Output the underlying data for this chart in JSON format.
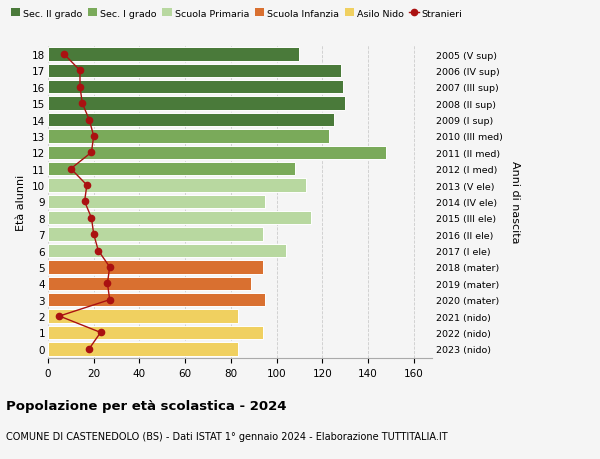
{
  "ages": [
    18,
    17,
    16,
    15,
    14,
    13,
    12,
    11,
    10,
    9,
    8,
    7,
    6,
    5,
    4,
    3,
    2,
    1,
    0
  ],
  "bar_values": [
    110,
    128,
    129,
    130,
    125,
    123,
    148,
    108,
    113,
    95,
    115,
    94,
    104,
    94,
    89,
    95,
    83,
    94,
    83
  ],
  "stranieri": [
    7,
    14,
    14,
    15,
    18,
    20,
    19,
    10,
    17,
    16,
    19,
    20,
    22,
    27,
    26,
    27,
    5,
    23,
    18
  ],
  "right_labels": [
    "2005 (V sup)",
    "2006 (IV sup)",
    "2007 (III sup)",
    "2008 (II sup)",
    "2009 (I sup)",
    "2010 (III med)",
    "2011 (II med)",
    "2012 (I med)",
    "2013 (V ele)",
    "2014 (IV ele)",
    "2015 (III ele)",
    "2016 (II ele)",
    "2017 (I ele)",
    "2018 (mater)",
    "2019 (mater)",
    "2020 (mater)",
    "2021 (nido)",
    "2022 (nido)",
    "2023 (nido)"
  ],
  "bar_colors_by_age": {
    "18": "#4a7a3a",
    "17": "#4a7a3a",
    "16": "#4a7a3a",
    "15": "#4a7a3a",
    "14": "#4a7a3a",
    "13": "#7aaa5a",
    "12": "#7aaa5a",
    "11": "#7aaa5a",
    "10": "#b8d8a0",
    "9": "#b8d8a0",
    "8": "#b8d8a0",
    "7": "#b8d8a0",
    "6": "#b8d8a0",
    "5": "#d97030",
    "4": "#d97030",
    "3": "#d97030",
    "2": "#f0d060",
    "1": "#f0d060",
    "0": "#f0d060"
  },
  "legend_items": [
    {
      "label": "Sec. II grado",
      "color": "#4a7a3a"
    },
    {
      "label": "Sec. I grado",
      "color": "#7aaa5a"
    },
    {
      "label": "Scuola Primaria",
      "color": "#b8d8a0"
    },
    {
      "label": "Scuola Infanzia",
      "color": "#d97030"
    },
    {
      "label": "Asilo Nido",
      "color": "#f0d060"
    },
    {
      "label": "Stranieri",
      "color": "#aa1111"
    }
  ],
  "ylabel": "Età alunni",
  "right_ylabel": "Anni di nascita",
  "title": "Popolazione per età scolastica - 2024",
  "subtitle": "COMUNE DI CASTENEDOLO (BS) - Dati ISTAT 1° gennaio 2024 - Elaborazione TUTTITALIA.IT",
  "xlim": [
    0,
    168
  ],
  "xticks": [
    0,
    20,
    40,
    60,
    80,
    100,
    120,
    140,
    160
  ],
  "background_color": "#f5f5f5",
  "grid_color": "#cccccc",
  "stranieri_color": "#aa1111",
  "bar_height": 0.82
}
